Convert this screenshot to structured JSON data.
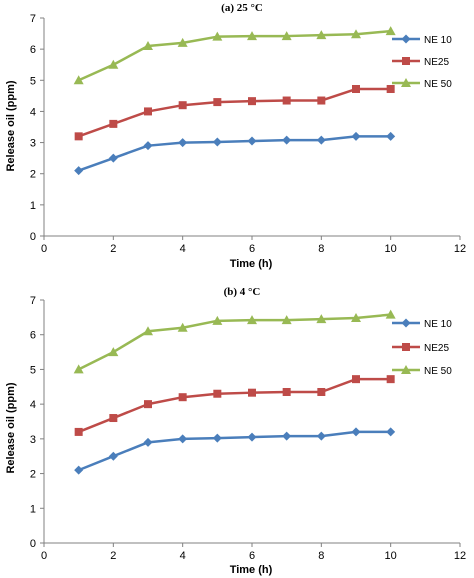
{
  "chart_data": [
    {
      "type": "line",
      "title": "(a) 25 °C",
      "xlabel": "Time (h)",
      "ylabel": "Release oil (ppm)",
      "xlim": [
        0,
        12
      ],
      "ylim": [
        0,
        7
      ],
      "xticks": [
        "0",
        "2",
        "4",
        "6",
        "8",
        "10",
        "12"
      ],
      "yticks": [
        "0",
        "1",
        "2",
        "3",
        "4",
        "5",
        "6",
        "7"
      ],
      "grid": false,
      "legend_position": "right",
      "x": [
        1,
        2,
        3,
        4,
        5,
        6,
        7,
        8,
        9,
        10
      ],
      "series": [
        {
          "name": "NE 10",
          "color": "#4a7ebb",
          "marker": "diamond",
          "values": [
            2.1,
            2.5,
            2.9,
            3.0,
            3.02,
            3.05,
            3.08,
            3.08,
            3.2,
            3.2
          ]
        },
        {
          "name": "NE25",
          "color": "#be4b48",
          "marker": "square",
          "values": [
            3.2,
            3.6,
            4.0,
            4.2,
            4.3,
            4.33,
            4.35,
            4.35,
            4.72,
            4.72
          ]
        },
        {
          "name": "NE 50",
          "color": "#98b954",
          "marker": "triangle",
          "values": [
            5.0,
            5.5,
            6.1,
            6.2,
            6.4,
            6.42,
            6.42,
            6.45,
            6.48,
            6.58
          ]
        }
      ]
    },
    {
      "type": "line",
      "title": "(b) 4 °C",
      "xlabel": "Time (h)",
      "ylabel": "Release oil (ppm)",
      "xlim": [
        0,
        12
      ],
      "ylim": [
        0,
        7
      ],
      "xticks": [
        "0",
        "2",
        "4",
        "6",
        "8",
        "10",
        "12"
      ],
      "yticks": [
        "0",
        "1",
        "2",
        "3",
        "4",
        "5",
        "6",
        "7"
      ],
      "grid": false,
      "legend_position": "right",
      "x": [
        1,
        2,
        3,
        4,
        5,
        6,
        7,
        8,
        9,
        10
      ],
      "series": [
        {
          "name": "NE 10",
          "color": "#4a7ebb",
          "marker": "diamond",
          "values": [
            2.1,
            2.5,
            2.9,
            3.0,
            3.02,
            3.05,
            3.08,
            3.08,
            3.2,
            3.2
          ]
        },
        {
          "name": "NE25",
          "color": "#be4b48",
          "marker": "square",
          "values": [
            3.2,
            3.6,
            4.0,
            4.2,
            4.3,
            4.33,
            4.35,
            4.35,
            4.72,
            4.72
          ]
        },
        {
          "name": "NE 50",
          "color": "#98b954",
          "marker": "triangle",
          "values": [
            5.0,
            5.5,
            6.1,
            6.2,
            6.4,
            6.42,
            6.42,
            6.45,
            6.48,
            6.58
          ]
        }
      ]
    }
  ]
}
